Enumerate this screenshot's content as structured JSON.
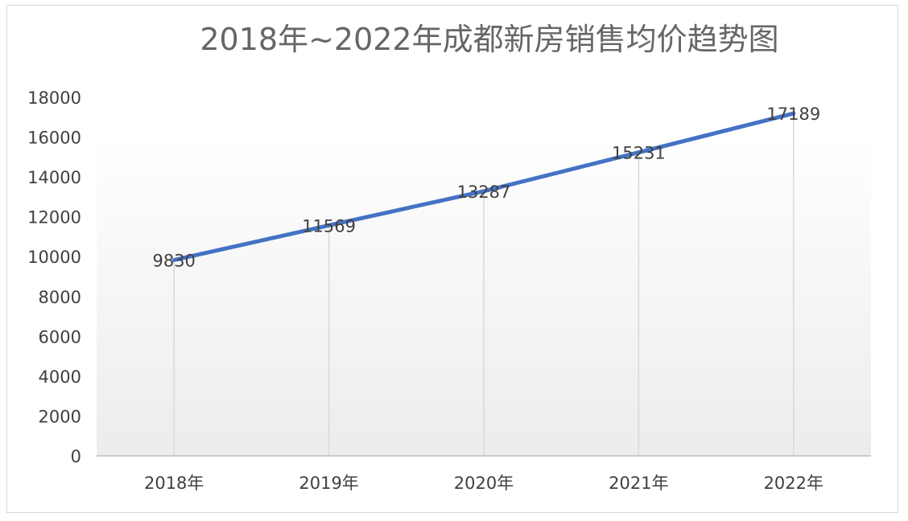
{
  "chart_data": {
    "type": "line",
    "title": "2018年~2022年成都新房销售均价趋势图",
    "categories": [
      "2018年",
      "2019年",
      "2020年",
      "2021年",
      "2022年"
    ],
    "series": [
      {
        "values": [
          9830,
          11569,
          13287,
          15231,
          17189
        ],
        "color": "#4472c4"
      }
    ],
    "ylim": [
      0,
      18000
    ],
    "yticks": [
      0,
      2000,
      4000,
      6000,
      8000,
      10000,
      12000,
      14000,
      16000,
      18000
    ],
    "xlabel": "",
    "ylabel": "",
    "grid": "vertical drop lines",
    "legend": "none",
    "data_labels": true
  }
}
